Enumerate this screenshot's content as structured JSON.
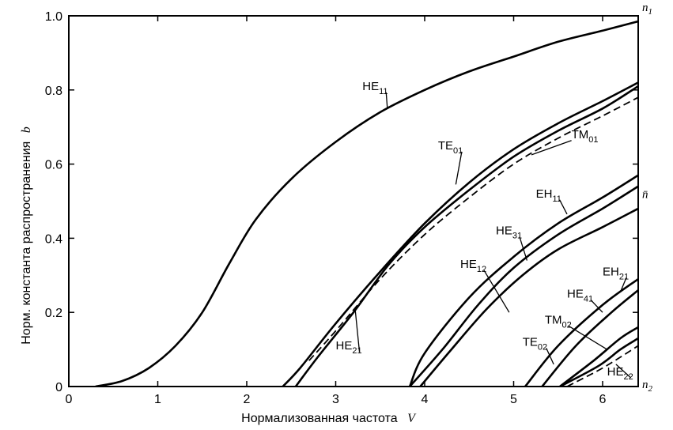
{
  "chart_data": {
    "type": "line",
    "title": "",
    "xlabel": "Нормализованная частота",
    "xlabel_var": "V",
    "ylabel": "Норм. константа распространения",
    "ylabel_var": "b",
    "xlim": [
      0,
      6.4
    ],
    "ylim": [
      0,
      1.0
    ],
    "x_ticks": [
      0,
      1,
      2,
      3,
      4,
      5,
      6
    ],
    "y_ticks": [
      0,
      0.2,
      0.4,
      0.6,
      0.8,
      1.0
    ],
    "y_tick_labels": [
      "0",
      "0.2",
      "0.4",
      "0.6",
      "0.8",
      "1.0"
    ],
    "grid": false,
    "legend": "none",
    "right_axis_labels": [
      {
        "base": "n",
        "sub": "1",
        "y": 1.0
      },
      {
        "base": "n̄",
        "sub": "",
        "y": 0.5
      },
      {
        "base": "n",
        "sub": "2",
        "y": 0.0
      }
    ],
    "series": [
      {
        "name": "HE11",
        "label_base": "HE",
        "label_sub": "11",
        "dashed": false,
        "x": [
          0.3,
          0.6,
          0.9,
          1.2,
          1.5,
          1.8,
          2.1,
          2.5,
          3.0,
          3.5,
          4.0,
          4.5,
          5.0,
          5.5,
          6.0,
          6.4
        ],
        "y": [
          0.0,
          0.015,
          0.05,
          0.11,
          0.2,
          0.33,
          0.45,
          0.56,
          0.66,
          0.74,
          0.8,
          0.85,
          0.89,
          0.93,
          0.96,
          0.985
        ]
      },
      {
        "name": "TE01",
        "label_base": "TE",
        "label_sub": "01",
        "dashed": false,
        "x": [
          2.405,
          2.6,
          3.0,
          3.5,
          4.0,
          4.5,
          5.0,
          5.5,
          6.0,
          6.4
        ],
        "y": [
          0.0,
          0.05,
          0.17,
          0.31,
          0.44,
          0.55,
          0.64,
          0.71,
          0.77,
          0.82
        ]
      },
      {
        "name": "HE21",
        "label_base": "HE",
        "label_sub": "21",
        "dashed": false,
        "x": [
          2.55,
          2.8,
          3.2,
          3.6,
          4.0,
          4.5,
          5.0,
          5.5,
          6.0,
          6.4
        ],
        "y": [
          0.0,
          0.08,
          0.2,
          0.33,
          0.43,
          0.53,
          0.62,
          0.69,
          0.75,
          0.81
        ]
      },
      {
        "name": "TM01",
        "label_base": "TM",
        "label_sub": "01",
        "dashed": true,
        "x": [
          2.7,
          3.0,
          3.5,
          4.0,
          4.5,
          5.0,
          5.5,
          6.0,
          6.4
        ],
        "y": [
          0.07,
          0.15,
          0.29,
          0.41,
          0.51,
          0.6,
          0.67,
          0.73,
          0.78
        ]
      },
      {
        "name": "EH11",
        "label_base": "EH",
        "label_sub": "11",
        "dashed": false,
        "x": [
          3.832,
          4.0,
          4.5,
          5.0,
          5.5,
          6.0,
          6.4
        ],
        "y": [
          0.0,
          0.09,
          0.24,
          0.35,
          0.44,
          0.51,
          0.57
        ]
      },
      {
        "name": "HE31",
        "label_base": "HE",
        "label_sub": "31",
        "dashed": false,
        "x": [
          3.832,
          4.2,
          4.6,
          5.0,
          5.5,
          6.0,
          6.4
        ],
        "y": [
          0.0,
          0.1,
          0.22,
          0.32,
          0.41,
          0.48,
          0.54
        ]
      },
      {
        "name": "HE12",
        "label_base": "HE",
        "label_sub": "12",
        "dashed": false,
        "x": [
          3.95,
          4.3,
          4.7,
          5.1,
          5.5,
          6.0,
          6.4
        ],
        "y": [
          0.0,
          0.1,
          0.21,
          0.3,
          0.37,
          0.43,
          0.48
        ]
      },
      {
        "name": "EH21",
        "label_base": "EH",
        "label_sub": "21",
        "dashed": false,
        "x": [
          5.13,
          5.5,
          6.0,
          6.4
        ],
        "y": [
          0.0,
          0.11,
          0.22,
          0.29
        ]
      },
      {
        "name": "HE41",
        "label_base": "HE",
        "label_sub": "41",
        "dashed": false,
        "x": [
          5.32,
          5.7,
          6.1,
          6.4
        ],
        "y": [
          0.0,
          0.11,
          0.2,
          0.26
        ]
      },
      {
        "name": "TM02",
        "label_base": "TM",
        "label_sub": "02",
        "dashed": false,
        "x": [
          5.52,
          5.9,
          6.2,
          6.4
        ],
        "y": [
          0.0,
          0.07,
          0.13,
          0.16
        ]
      },
      {
        "name": "TE02",
        "label_base": "TE",
        "label_sub": "02",
        "dashed": false,
        "x": [
          5.52,
          5.95,
          6.2,
          6.4
        ],
        "y": [
          0.0,
          0.055,
          0.1,
          0.13
        ]
      },
      {
        "name": "HE22",
        "label_base": "HE",
        "label_sub": "22",
        "dashed": true,
        "x": [
          5.6,
          6.0,
          6.4
        ],
        "y": [
          0.0,
          0.05,
          0.11
        ]
      }
    ],
    "curve_labels": [
      {
        "series": "HE11",
        "label_x": 3.3,
        "label_y": 0.8,
        "line_to": [
          3.58,
          0.752
        ]
      },
      {
        "series": "TE01",
        "label_x": 4.15,
        "label_y": 0.64,
        "line_to": [
          4.35,
          0.545
        ]
      },
      {
        "series": "TM01",
        "label_x": 5.65,
        "label_y": 0.67,
        "line_to": [
          5.2,
          0.625
        ]
      },
      {
        "series": "HE21",
        "label_x": 3.0,
        "label_y": 0.1,
        "line_to": [
          3.22,
          0.205
        ]
      },
      {
        "series": "EH11",
        "label_x": 5.25,
        "label_y": 0.51,
        "line_to": [
          5.6,
          0.465
        ]
      },
      {
        "series": "HE31",
        "label_x": 4.8,
        "label_y": 0.41,
        "line_to": [
          5.15,
          0.34
        ]
      },
      {
        "series": "HE12",
        "label_x": 4.4,
        "label_y": 0.32,
        "line_to": [
          4.95,
          0.2
        ]
      },
      {
        "series": "EH21",
        "label_x": 6.0,
        "label_y": 0.3,
        "line_to": [
          6.2,
          0.255
        ]
      },
      {
        "series": "HE41",
        "label_x": 5.6,
        "label_y": 0.24,
        "line_to": [
          6.0,
          0.2
        ]
      },
      {
        "series": "TM02",
        "label_x": 5.35,
        "label_y": 0.17,
        "line_to": [
          6.05,
          0.1
        ]
      },
      {
        "series": "TE02",
        "label_x": 5.1,
        "label_y": 0.11,
        "line_to": [
          5.45,
          0.06
        ]
      },
      {
        "series": "HE22",
        "label_x": 6.05,
        "label_y": 0.03,
        "line_to": [
          6.15,
          0.06
        ]
      }
    ]
  }
}
